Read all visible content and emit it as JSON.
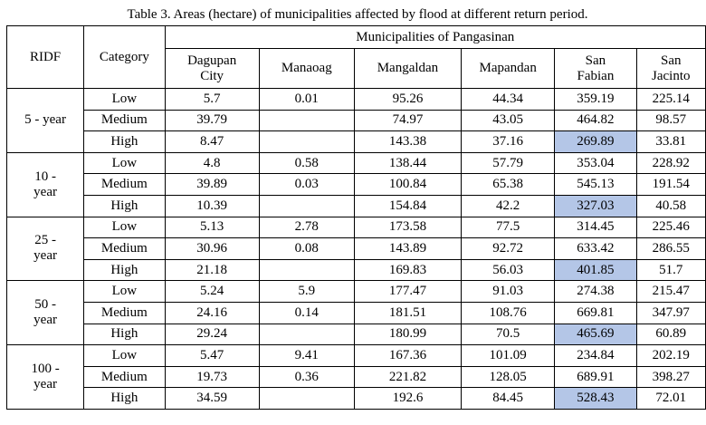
{
  "caption": "Table 3. Areas (hectare) of municipalities affected by flood at different return period.",
  "headers": {
    "ridf": "RIDF",
    "category": "Category",
    "group": "Municipalities of Pangasinan",
    "municipalities": [
      [
        "Dagupan",
        "City"
      ],
      [
        "Manaoag"
      ],
      [
        "Mangaldan"
      ],
      [
        "Mapandan"
      ],
      [
        "San",
        "Fabian"
      ],
      [
        "San",
        "Jacinto"
      ]
    ]
  },
  "highlight_color": "#b4c6e7",
  "periods": [
    {
      "label": [
        "5 - year"
      ],
      "rows": [
        {
          "category": "Low",
          "values": [
            "5.7",
            "0.01",
            "95.26",
            "44.34",
            "359.19",
            "225.14"
          ]
        },
        {
          "category": "Medium",
          "values": [
            "39.79",
            "",
            "74.97",
            "43.05",
            "464.82",
            "98.57"
          ]
        },
        {
          "category": "High",
          "values": [
            "8.47",
            "",
            "143.38",
            "37.16",
            "269.89",
            "33.81"
          ]
        }
      ]
    },
    {
      "label": [
        "10 -",
        "year"
      ],
      "rows": [
        {
          "category": "Low",
          "values": [
            "4.8",
            "0.58",
            "138.44",
            "57.79",
            "353.04",
            "228.92"
          ]
        },
        {
          "category": "Medium",
          "values": [
            "39.89",
            "0.03",
            "100.84",
            "65.38",
            "545.13",
            "191.54"
          ]
        },
        {
          "category": "High",
          "values": [
            "10.39",
            "",
            "154.84",
            "42.2",
            "327.03",
            "40.58"
          ]
        }
      ]
    },
    {
      "label": [
        "25 -",
        "year"
      ],
      "rows": [
        {
          "category": "Low",
          "values": [
            "5.13",
            "2.78",
            "173.58",
            "77.5",
            "314.45",
            "225.46"
          ]
        },
        {
          "category": "Medium",
          "values": [
            "30.96",
            "0.08",
            "143.89",
            "92.72",
            "633.42",
            "286.55"
          ]
        },
        {
          "category": "High",
          "values": [
            "21.18",
            "",
            "169.83",
            "56.03",
            "401.85",
            "51.7"
          ]
        }
      ]
    },
    {
      "label": [
        "50 -",
        "year"
      ],
      "rows": [
        {
          "category": "Low",
          "values": [
            "5.24",
            "5.9",
            "177.47",
            "91.03",
            "274.38",
            "215.47"
          ]
        },
        {
          "category": "Medium",
          "values": [
            "24.16",
            "0.14",
            "181.51",
            "108.76",
            "669.81",
            "347.97"
          ]
        },
        {
          "category": "High",
          "values": [
            "29.24",
            "",
            "180.99",
            "70.5",
            "465.69",
            "60.89"
          ]
        }
      ]
    },
    {
      "label": [
        "100 -",
        "year"
      ],
      "rows": [
        {
          "category": "Low",
          "values": [
            "5.47",
            "9.41",
            "167.36",
            "101.09",
            "234.84",
            "202.19"
          ]
        },
        {
          "category": "Medium",
          "values": [
            "19.73",
            "0.36",
            "221.82",
            "128.05",
            "689.91",
            "398.27"
          ]
        },
        {
          "category": "High",
          "values": [
            "34.59",
            "",
            "192.6",
            "84.45",
            "528.43",
            "72.01"
          ]
        }
      ]
    }
  ]
}
